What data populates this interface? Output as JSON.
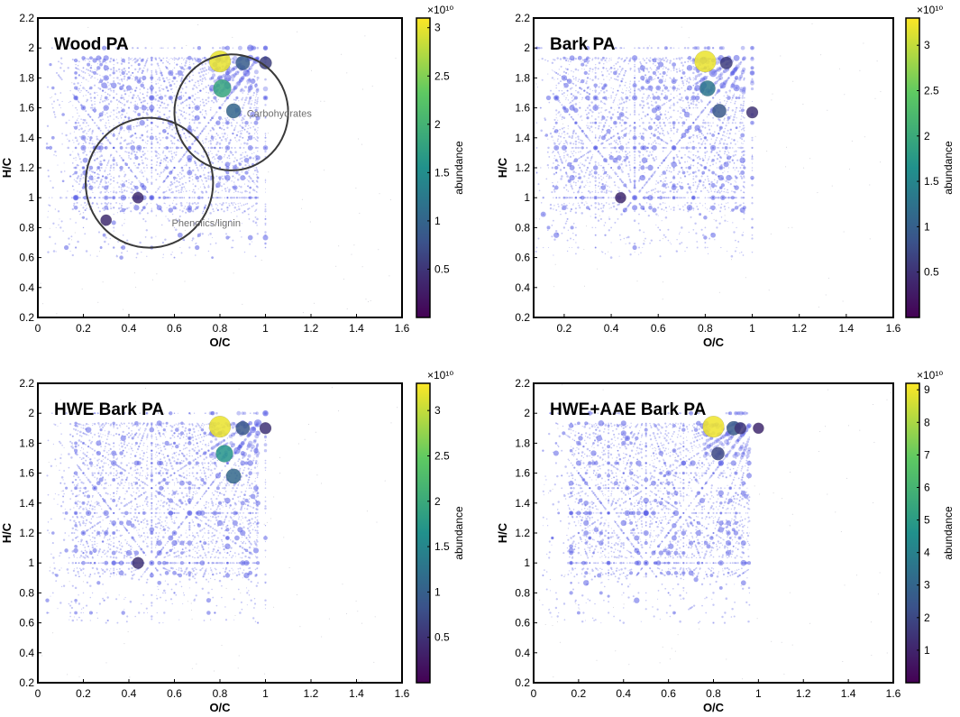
{
  "colors": {
    "marker_base": "#5a5ee6",
    "annotation_circle": "#3a3a3a",
    "annotation_text": "#6e6e6e",
    "viridis": [
      "#440154",
      "#3b528b",
      "#21918c",
      "#5ec962",
      "#fde725"
    ]
  },
  "chart_data": [
    {
      "type": "scatter",
      "title": "Wood PA",
      "xlabel": "O/C",
      "ylabel": "H/C",
      "xlim": [
        0,
        1.6
      ],
      "ylim": [
        0.2,
        2.2
      ],
      "xticks": [
        "0",
        "0.2",
        "0.4",
        "0.6",
        "0.8",
        "1",
        "1.2",
        "1.4",
        "1.6"
      ],
      "yticks": [
        "0.2",
        "0.4",
        "0.6",
        "0.8",
        "1",
        "1.2",
        "1.4",
        "1.6",
        "1.8",
        "2",
        "2.2"
      ],
      "colorbar": {
        "label": "abundance",
        "exponent": "×10¹⁰",
        "range": [
          0,
          3.1
        ],
        "ticks": [
          "0.5",
          "1",
          "1.5",
          "2",
          "2.5",
          "3"
        ]
      },
      "highlights": [
        {
          "x": 0.8,
          "y": 1.91,
          "value": 3.0
        },
        {
          "x": 0.81,
          "y": 1.73,
          "value": 1.8
        },
        {
          "x": 0.9,
          "y": 1.9,
          "value": 0.9
        },
        {
          "x": 0.86,
          "y": 1.58,
          "value": 1.0
        },
        {
          "x": 1.0,
          "y": 1.9,
          "value": 0.6
        },
        {
          "x": 0.3,
          "y": 0.85,
          "value": 0.4
        },
        {
          "x": 0.44,
          "y": 1.0,
          "value": 0.4
        }
      ],
      "annotations": [
        {
          "label": "Carbohydrates",
          "cx": 0.85,
          "cy": 1.57,
          "r": 0.25
        },
        {
          "label": "Phenolics/lignin",
          "cx": 0.49,
          "cy": 1.1,
          "r": 0.28
        }
      ]
    },
    {
      "type": "scatter",
      "title": "Bark PA",
      "xlabel": "O/C",
      "ylabel": "H/C",
      "xlim": [
        0.07,
        1.6
      ],
      "ylim": [
        0.2,
        2.2
      ],
      "xticks": [
        "0.2",
        "0.4",
        "0.6",
        "0.8",
        "1",
        "1.2",
        "1.4",
        "1.6"
      ],
      "yticks": [
        "0.2",
        "0.4",
        "0.6",
        "0.8",
        "1",
        "1.2",
        "1.4",
        "1.6",
        "1.8",
        "2",
        "2.2"
      ],
      "colorbar": {
        "label": "abundance",
        "exponent": "×10¹⁰",
        "range": [
          0,
          3.3
        ],
        "ticks": [
          "0.5",
          "1",
          "1.5",
          "2",
          "2.5",
          "3"
        ]
      },
      "highlights": [
        {
          "x": 0.8,
          "y": 1.91,
          "value": 3.2
        },
        {
          "x": 0.81,
          "y": 1.73,
          "value": 1.3
        },
        {
          "x": 0.86,
          "y": 1.58,
          "value": 0.9
        },
        {
          "x": 1.0,
          "y": 1.57,
          "value": 0.5
        },
        {
          "x": 0.89,
          "y": 1.9,
          "value": 0.6
        },
        {
          "x": 0.44,
          "y": 1.0,
          "value": 0.4
        }
      ],
      "annotations": []
    },
    {
      "type": "scatter",
      "title": "HWE Bark PA",
      "xlabel": "O/C",
      "ylabel": "H/C",
      "xlim": [
        0,
        1.6
      ],
      "ylim": [
        0.2,
        2.2
      ],
      "xticks": [
        "0",
        "0.2",
        "0.4",
        "0.6",
        "0.8",
        "1",
        "1.2",
        "1.4",
        "1.6"
      ],
      "yticks": [
        "0.2",
        "0.4",
        "0.6",
        "0.8",
        "1",
        "1.2",
        "1.4",
        "1.6",
        "1.8",
        "2",
        "2.2"
      ],
      "colorbar": {
        "label": "abundance",
        "exponent": "×10¹⁰",
        "range": [
          0,
          3.3
        ],
        "ticks": [
          "0.5",
          "1",
          "1.5",
          "2",
          "2.5",
          "3"
        ]
      },
      "highlights": [
        {
          "x": 0.8,
          "y": 1.91,
          "value": 3.2
        },
        {
          "x": 0.82,
          "y": 1.73,
          "value": 1.7
        },
        {
          "x": 0.86,
          "y": 1.58,
          "value": 1.1
        },
        {
          "x": 0.9,
          "y": 1.9,
          "value": 0.9
        },
        {
          "x": 0.44,
          "y": 1.0,
          "value": 0.5
        },
        {
          "x": 1.0,
          "y": 1.9,
          "value": 0.5
        }
      ],
      "annotations": []
    },
    {
      "type": "scatter",
      "title": "HWE+AAE Bark PA",
      "xlabel": "O/C",
      "ylabel": "H/C",
      "xlim": [
        0,
        1.6
      ],
      "ylim": [
        0.2,
        2.2
      ],
      "xticks": [
        "0",
        "0.2",
        "0.4",
        "0.6",
        "0.8",
        "1",
        "1.2",
        "1.4",
        "1.6"
      ],
      "yticks": [
        "0.2",
        "0.4",
        "0.6",
        "0.8",
        "1",
        "1.2",
        "1.4",
        "1.6",
        "1.8",
        "2",
        "2.2"
      ],
      "colorbar": {
        "label": "abundance",
        "exponent": "×10¹⁰",
        "range": [
          0,
          9.2
        ],
        "ticks": [
          "1",
          "2",
          "3",
          "4",
          "5",
          "6",
          "7",
          "8",
          "9"
        ]
      },
      "highlights": [
        {
          "x": 0.8,
          "y": 1.91,
          "value": 9.0
        },
        {
          "x": 0.89,
          "y": 1.9,
          "value": 2.6
        },
        {
          "x": 0.82,
          "y": 1.73,
          "value": 2.0
        },
        {
          "x": 0.92,
          "y": 1.9,
          "value": 1.5
        },
        {
          "x": 1.0,
          "y": 1.9,
          "value": 1.1
        }
      ],
      "annotations": []
    }
  ]
}
